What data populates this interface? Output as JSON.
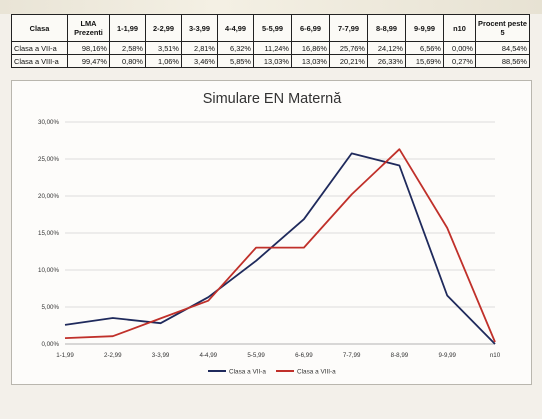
{
  "table": {
    "headers": [
      "Clasa",
      "LMA Prezenti",
      "1-1,99",
      "2-2,99",
      "3-3,99",
      "4-4,99",
      "5-5,99",
      "6-6,99",
      "7-7,99",
      "8-8,99",
      "9-9,99",
      "n10",
      "Procent peste 5"
    ],
    "rows": [
      {
        "cells": [
          "Clasa a VII-a",
          "98,16%",
          "2,58%",
          "3,51%",
          "2,81%",
          "6,32%",
          "11,24%",
          "16,86%",
          "25,76%",
          "24,12%",
          "6,56%",
          "0,00%",
          "84,54%"
        ]
      },
      {
        "cells": [
          "Clasa a VIII-a",
          "99,47%",
          "0,80%",
          "1,06%",
          "3,46%",
          "5,85%",
          "13,03%",
          "13,03%",
          "20,21%",
          "26,33%",
          "15,69%",
          "0,27%",
          "88,56%"
        ]
      }
    ]
  },
  "chart_data": {
    "type": "line",
    "title": "Simulare EN Maternă",
    "categories": [
      "1-1,99",
      "2-2,99",
      "3-3,99",
      "4-4,99",
      "5-5,99",
      "6-6,99",
      "7-7,99",
      "8-8,99",
      "9-9,99",
      "n10"
    ],
    "series": [
      {
        "name": "Clasa a VII-a",
        "color": "#1f2a5c",
        "values": [
          2.58,
          3.51,
          2.81,
          6.32,
          11.24,
          16.86,
          25.76,
          24.12,
          6.56,
          0.0
        ]
      },
      {
        "name": "Clasa a VIII-a",
        "color": "#c0302a",
        "values": [
          0.8,
          1.06,
          3.46,
          5.85,
          13.03,
          13.03,
          20.21,
          26.33,
          15.69,
          0.27
        ]
      }
    ],
    "ylim": [
      0,
      30
    ],
    "yticks": [
      0,
      5,
      10,
      15,
      20,
      25,
      30
    ],
    "ytick_labels": [
      "0,00%",
      "5,00%",
      "10,00%",
      "15,00%",
      "20,00%",
      "25,00%",
      "30,00%"
    ],
    "grid": true,
    "legend": "bottom-center"
  }
}
